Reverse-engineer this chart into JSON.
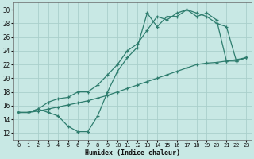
{
  "xlabel": "Humidex (Indice chaleur)",
  "ylabel": "",
  "bg_color": "#c8e8e4",
  "grid_color": "#b0d8d4",
  "line_color": "#2e7d6e",
  "xlim": [
    -0.5,
    23.5
  ],
  "ylim": [
    11,
    31
  ],
  "xticks": [
    0,
    1,
    2,
    3,
    4,
    5,
    6,
    7,
    8,
    9,
    10,
    11,
    12,
    13,
    14,
    15,
    16,
    17,
    18,
    19,
    20,
    21,
    22,
    23
  ],
  "yticks": [
    12,
    14,
    16,
    18,
    20,
    22,
    24,
    26,
    28,
    30
  ],
  "line1_x": [
    0,
    1,
    2,
    3,
    4,
    5,
    6,
    7,
    8,
    9,
    10,
    11,
    12,
    13,
    14,
    15,
    16,
    17,
    18,
    19,
    20,
    21,
    22,
    23
  ],
  "line1_y": [
    15.0,
    15.0,
    15.2,
    15.5,
    15.8,
    16.1,
    16.4,
    16.7,
    17.1,
    17.5,
    18.0,
    18.5,
    19.0,
    19.5,
    20.0,
    20.5,
    21.0,
    21.5,
    22.0,
    22.2,
    22.3,
    22.5,
    22.7,
    23.0
  ],
  "line2_x": [
    0,
    1,
    2,
    3,
    4,
    5,
    6,
    7,
    8,
    9,
    10,
    11,
    12,
    13,
    14,
    15,
    16,
    17,
    18,
    19,
    20,
    21,
    22,
    23
  ],
  "line2_y": [
    15.0,
    15.0,
    15.5,
    15.0,
    14.5,
    13.0,
    12.2,
    12.2,
    14.5,
    18.0,
    21.0,
    23.0,
    24.5,
    29.5,
    27.5,
    29.0,
    29.0,
    30.0,
    29.0,
    29.5,
    28.5,
    22.5,
    22.5,
    23.0
  ],
  "line3_x": [
    0,
    1,
    2,
    3,
    4,
    5,
    6,
    7,
    8,
    9,
    10,
    11,
    12,
    13,
    14,
    15,
    16,
    17,
    18,
    19,
    20,
    21,
    22,
    23
  ],
  "line3_y": [
    15.0,
    15.0,
    15.5,
    16.5,
    17.0,
    17.2,
    18.0,
    18.0,
    19.0,
    20.5,
    22.0,
    24.0,
    25.0,
    27.0,
    29.0,
    28.5,
    29.5,
    30.0,
    29.5,
    29.0,
    28.0,
    27.5,
    22.5,
    23.0
  ]
}
